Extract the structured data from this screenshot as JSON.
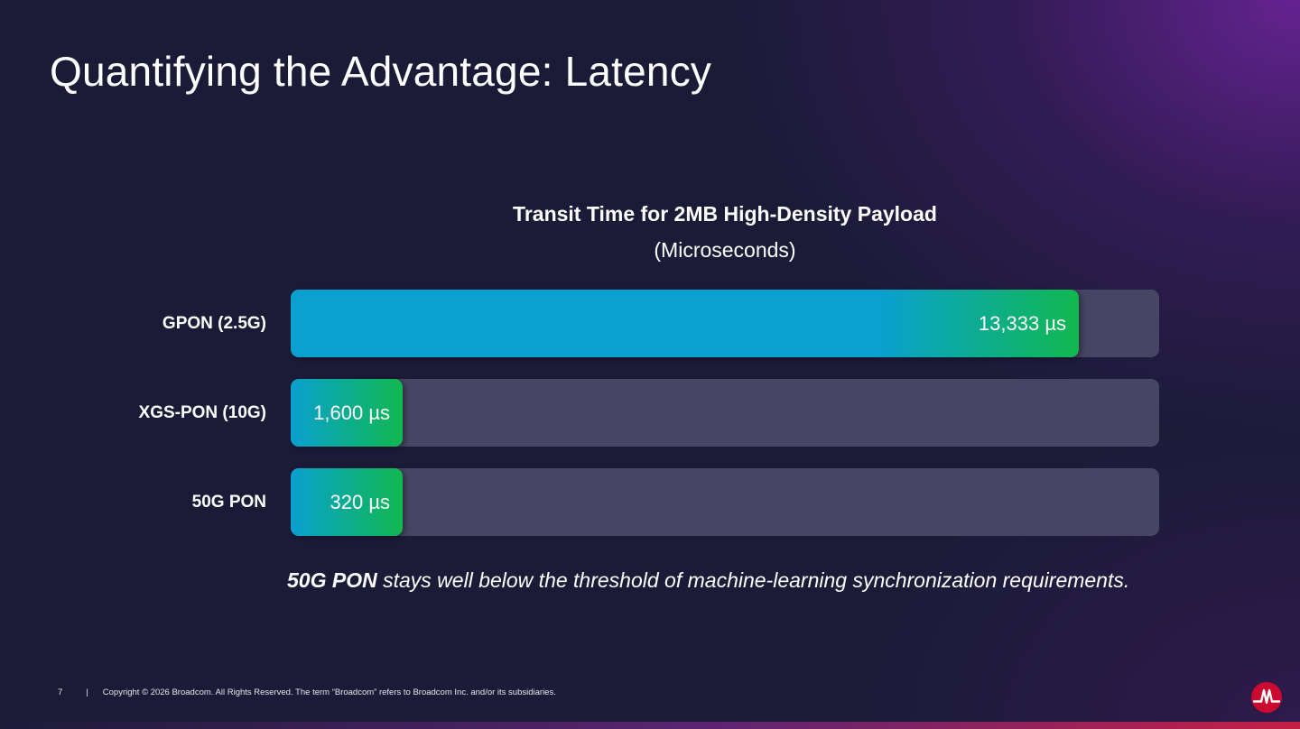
{
  "slide": {
    "title": "Quantifying the Advantage: Latency"
  },
  "chart_data": {
    "type": "bar",
    "orientation": "horizontal",
    "title": "Transit Time for 2MB High-Density Payload",
    "subtitle": "(Microseconds)",
    "unit": "µs",
    "xlim": [
      0,
      14700
    ],
    "grid": false,
    "categories": [
      "GPON (2.5G)",
      "XGS-PON (10G)",
      "50G PON"
    ],
    "values": [
      13333,
      1600,
      320
    ],
    "value_labels": [
      "13,333 µs",
      "1,600 µs",
      "320 µs"
    ]
  },
  "takeaway": {
    "emphasis": "50G PON",
    "rest": " stays well below the threshold of machine-learning synchronization requirements."
  },
  "footer": {
    "page_number": "7",
    "separator": "|",
    "copyright": "Copyright © 2026 Broadcom.  All Rights Reserved. The term “Broadcom” refers to Broadcom Inc. and/or its subsidiaries."
  },
  "logo": {
    "icon": "broadcom-logo-icon",
    "color": "#cc092f"
  },
  "colors": {
    "bar_start": "#0aa0cf",
    "bar_end": "#10b84f",
    "track": "#464664"
  }
}
